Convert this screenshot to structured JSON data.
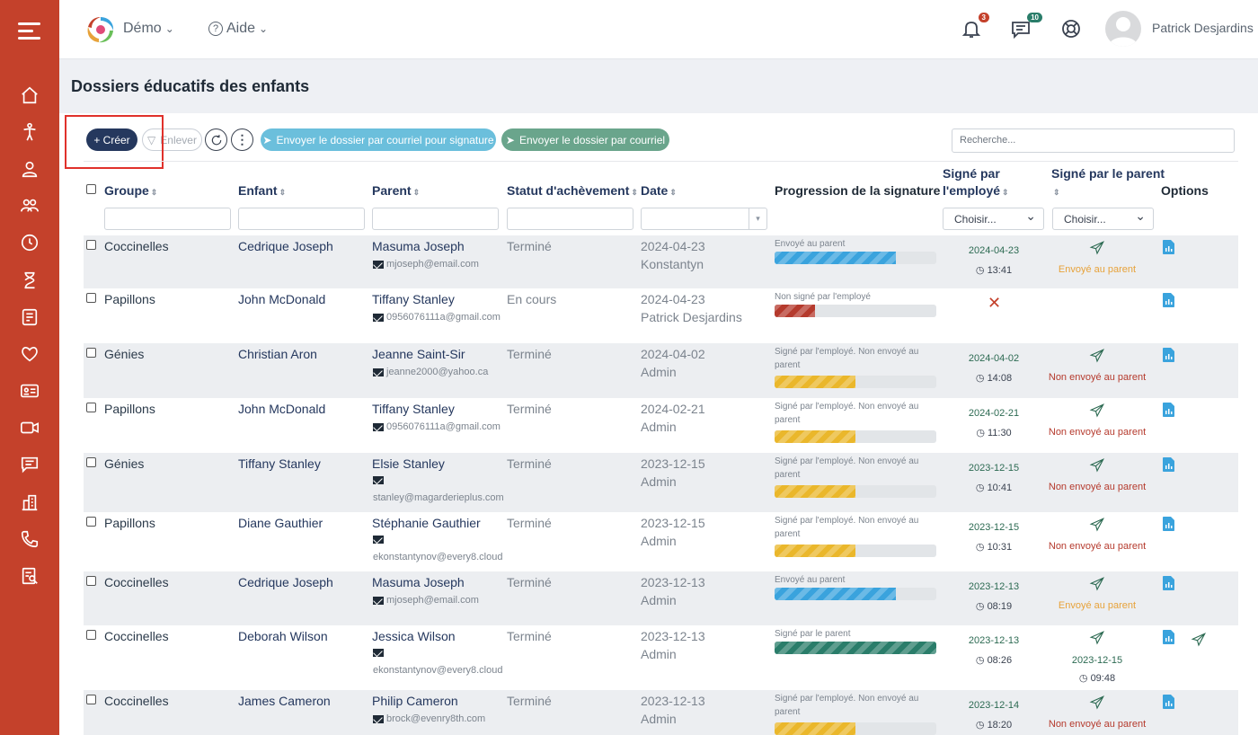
{
  "topbar": {
    "menus": [
      "Démo",
      "Aide"
    ],
    "notifications_count": "3",
    "messages_count": "10",
    "user_name": "Patrick Desjardins"
  },
  "page": {
    "title": "Dossiers éducatifs des enfants"
  },
  "toolbar": {
    "create_label": "+ Créer",
    "remove_label": "Enlever",
    "send_signature_label": "Envoyer le dossier par courriel pour signature",
    "send_label": "Envoyer le dossier par courriel",
    "search_placeholder": "Recherche..."
  },
  "columns": {
    "group": "Groupe",
    "child": "Enfant",
    "parent": "Parent",
    "status": "Statut d'achèvement",
    "date": "Date",
    "progress": "Progression de la signature",
    "signed_employee_1": "Signé par",
    "signed_employee_2": "l'employé",
    "signed_parent": "Signé par le parent",
    "options": "Options"
  },
  "filters": {
    "select_placeholder": "Choisir..."
  },
  "colors": {
    "blue": "#3aa3dd",
    "red": "#b53a2d",
    "yellow": "#eab72b",
    "green": "#2a7d6a",
    "orange": "#e7a23a",
    "darkred": "#b53a2d"
  },
  "rows": [
    {
      "group": "Coccinelles",
      "child": "Cedrique Joseph",
      "parent": "Masuma Joseph",
      "email": "mjoseph@email.com",
      "status": "Terminé",
      "date": "2024-04-23",
      "by": "Konstantyn",
      "progress_label": "Envoyé au parent",
      "progress_pct": 75,
      "progress_color": "blue",
      "sig_date": "2024-04-23",
      "sig_time": "13:41",
      "parent_status": "Envoyé au parent",
      "parent_color": "orange"
    },
    {
      "group": "Papillons",
      "child": "John McDonald",
      "parent": "Tiffany Stanley",
      "email": "0956076111a@gmail.com",
      "status": "En cours",
      "date": "2024-04-23",
      "by": "Patrick Desjardins",
      "progress_label": "Non signé par l'employé",
      "progress_pct": 25,
      "progress_color": "red",
      "sig_date": "",
      "sig_time": "",
      "parent_status": "",
      "parent_color": "darkred"
    },
    {
      "group": "Génies",
      "child": "Christian Aron",
      "parent": "Jeanne Saint-Sir",
      "email": "jeanne2000@yahoo.ca",
      "status": "Terminé",
      "date": "2024-04-02",
      "by": "Admin",
      "progress_label": "Signé par l'employé. Non envoyé au parent",
      "progress_pct": 50,
      "progress_color": "yellow",
      "sig_date": "2024-04-02",
      "sig_time": "14:08",
      "parent_status": "Non envoyé au parent",
      "parent_color": "darkred"
    },
    {
      "group": "Papillons",
      "child": "John McDonald",
      "parent": "Tiffany Stanley",
      "email": "0956076111a@gmail.com",
      "status": "Terminé",
      "date": "2024-02-21",
      "by": "Admin",
      "progress_label": "Signé par l'employé. Non envoyé au parent",
      "progress_pct": 50,
      "progress_color": "yellow",
      "sig_date": "2024-02-21",
      "sig_time": "11:30",
      "parent_status": "Non envoyé au parent",
      "parent_color": "darkred"
    },
    {
      "group": "Génies",
      "child": "Tiffany Stanley",
      "parent": "Elsie Stanley",
      "email": "stanley@magarderieplus.com",
      "status": "Terminé",
      "date": "2023-12-15",
      "by": "Admin",
      "progress_label": "Signé par l'employé. Non envoyé au parent",
      "progress_pct": 50,
      "progress_color": "yellow",
      "sig_date": "2023-12-15",
      "sig_time": "10:41",
      "parent_status": "Non envoyé au parent",
      "parent_color": "darkred"
    },
    {
      "group": "Papillons",
      "child": "Diane Gauthier",
      "parent": "Stéphanie Gauthier",
      "email": "ekonstantynov@every8.cloud",
      "status": "Terminé",
      "date": "2023-12-15",
      "by": "Admin",
      "progress_label": "Signé par l'employé. Non envoyé au parent",
      "progress_pct": 50,
      "progress_color": "yellow",
      "sig_date": "2023-12-15",
      "sig_time": "10:31",
      "parent_status": "Non envoyé au parent",
      "parent_color": "darkred"
    },
    {
      "group": "Coccinelles",
      "child": "Cedrique Joseph",
      "parent": "Masuma Joseph",
      "email": "mjoseph@email.com",
      "status": "Terminé",
      "date": "2023-12-13",
      "by": "Admin",
      "progress_label": "Envoyé au parent",
      "progress_pct": 75,
      "progress_color": "blue",
      "sig_date": "2023-12-13",
      "sig_time": "08:19",
      "parent_status": "Envoyé au parent",
      "parent_color": "orange"
    },
    {
      "group": "Coccinelles",
      "child": "Deborah Wilson",
      "parent": "Jessica Wilson",
      "email": "ekonstantynov@every8.cloud",
      "status": "Terminé",
      "date": "2023-12-13",
      "by": "Admin",
      "progress_label": "Signé par le parent",
      "progress_pct": 100,
      "progress_color": "green",
      "sig_date": "2023-12-13",
      "sig_time": "08:26",
      "parent_status": "",
      "parent_date": "2023-12-15",
      "parent_time": "09:48",
      "parent_color": "darkred"
    },
    {
      "group": "Coccinelles",
      "child": "James Cameron",
      "parent": "Philip Cameron",
      "email": "brock@evenry8th.com",
      "status": "Terminé",
      "date": "2023-12-13",
      "by": "Admin",
      "progress_label": "Signé par l'employé. Non envoyé au parent",
      "progress_pct": 50,
      "progress_color": "yellow",
      "sig_date": "2023-12-14",
      "sig_time": "18:20",
      "parent_status": "Non envoyé au parent",
      "parent_color": "darkred"
    }
  ]
}
